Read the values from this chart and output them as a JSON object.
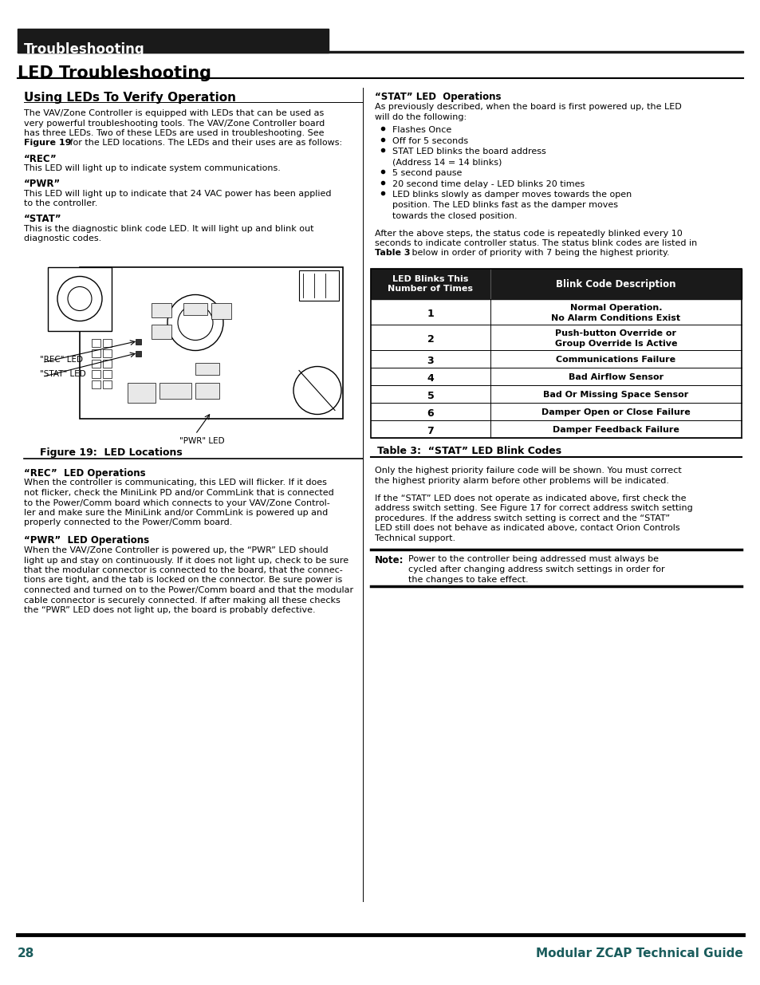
{
  "page_bg": "#ffffff",
  "header_bg": "#1a1a1a",
  "header_text": "Troubleshooting",
  "header_text_color": "#ffffff",
  "section_title": "LED Troubleshooting",
  "section_title_color": "#000000",
  "teal_color": "#1a5c5c",
  "subsection1_title": "Using LEDs To Verify Operation",
  "body_text_color": "#000000",
  "para1_line1": "The VAV/Zone Controller is equipped with LEDs that can be used as",
  "para1_line2": "very powerful troubleshooting tools. The VAV/Zone Controller board",
  "para1_line3": "has three LEDs. Two of these LEDs are used in troubleshooting. See",
  "para1_line4_bold": "Figure 19",
  "para1_line4_rest": " for the LED locations. The LEDs and their uses are as follows:",
  "rec_label": "“REC”",
  "rec_text": "This LED will light up to indicate system communications.",
  "pwr_label": "“PWR”",
  "pwr_text_line1": "This LED will light up to indicate that 24 VAC power has been applied",
  "pwr_text_line2": "to the controller.",
  "stat_label": "“STAT”",
  "stat_text_line1": "This is the diagnostic blink code LED. It will light up and blink out",
  "stat_text_line2": "diagnostic codes.",
  "figure_caption": "Figure 19:  LED Locations",
  "right_stat_title": "“STAT” LED  Operations",
  "right_stat_intro_line1": "As previously described, when the board is first powered up, the LED",
  "right_stat_intro_line2": "will do the following:",
  "stat_bullets": [
    "Flashes Once",
    "Off for 5 seconds",
    "STAT LED blinks the board address",
    "(Address 14 = 14 blinks)",
    "5 second pause",
    "20 second time delay - LED blinks 20 times",
    "LED blinks slowly as damper moves towards the open",
    "position. The LED blinks fast as the damper moves",
    "towards the closed position."
  ],
  "bullet_has_bullet": [
    true,
    true,
    true,
    false,
    true,
    true,
    true,
    false,
    false
  ],
  "after_bullets_text_line1": "After the above steps, the status code is repeatedly blinked every 10",
  "after_bullets_text_line2": "seconds to indicate controller status. The status blink codes are listed in",
  "after_bullets_text_line3_bold": "Table 3",
  "after_bullets_text_line3_rest": " below in order of priority with 7 being the highest priority.",
  "table_header1": "LED Blinks This\nNumber of Times",
  "table_header2": "Blink Code Description",
  "table_header_bg": "#1a1a1a",
  "table_header_text": "#ffffff",
  "table_rows": [
    [
      "1",
      "Normal Operation.\nNo Alarm Conditions Exist"
    ],
    [
      "2",
      "Push-button Override or\nGroup Override Is Active"
    ],
    [
      "3",
      "Communications Failure"
    ],
    [
      "4",
      "Bad Airflow Sensor"
    ],
    [
      "5",
      "Bad Or Missing Space Sensor"
    ],
    [
      "6",
      "Damper Open or Close Failure"
    ],
    [
      "7",
      "Damper Feedback Failure"
    ]
  ],
  "table_caption": "Table 3:  “STAT” LED Blink Codes",
  "rec_ops_title": "“REC”  LED Operations",
  "rec_ops_lines": [
    "When the controller is communicating, this LED will flicker. If it does",
    "not flicker, check the MiniLink PD and/or CommLink that is connected",
    "to the Power/Comm board which connects to your VAV/Zone Control-",
    "ler and make sure the MiniLink and/or CommLink is powered up and",
    "properly connected to the Power/Comm board."
  ],
  "pwr_ops_title": "“PWR”  LED Operations",
  "pwr_ops_lines": [
    "When the VAV/Zone Controller is powered up, the “PWR” LED should",
    "light up and stay on continuously. If it does not light up, check to be sure",
    "that the modular connector is connected to the board, that the connec-",
    "tions are tight, and the tab is locked on the connector. Be sure power is",
    "connected and turned on to the Power/Comm board and that the modular",
    "cable connector is securely connected. If after making all these checks",
    "the “PWR” LED does not light up, the board is probably defective."
  ],
  "right_lower_text1_lines": [
    "Only the highest priority failure code will be shown. You must correct",
    "the highest priority alarm before other problems will be indicated."
  ],
  "right_lower_text2_lines": [
    "If the “STAT” LED does not operate as indicated above, first check the",
    "address switch setting. See Figure 17 for correct address switch setting",
    "procedures. If the address switch setting is correct and the “STAT”",
    "LED still does not behave as indicated above, contact Orion Controls",
    "Technical support."
  ],
  "note_label": "Note:",
  "note_text_lines": [
    "Power to the controller being addressed must always be",
    "cycled after changing address switch settings in order for",
    "the changes to take effect."
  ],
  "footer_line_color": "#1a1a1a",
  "footer_page": "28",
  "footer_title": "Modular ZCAP Technical Guide",
  "footer_text_color": "#1a5c5c"
}
